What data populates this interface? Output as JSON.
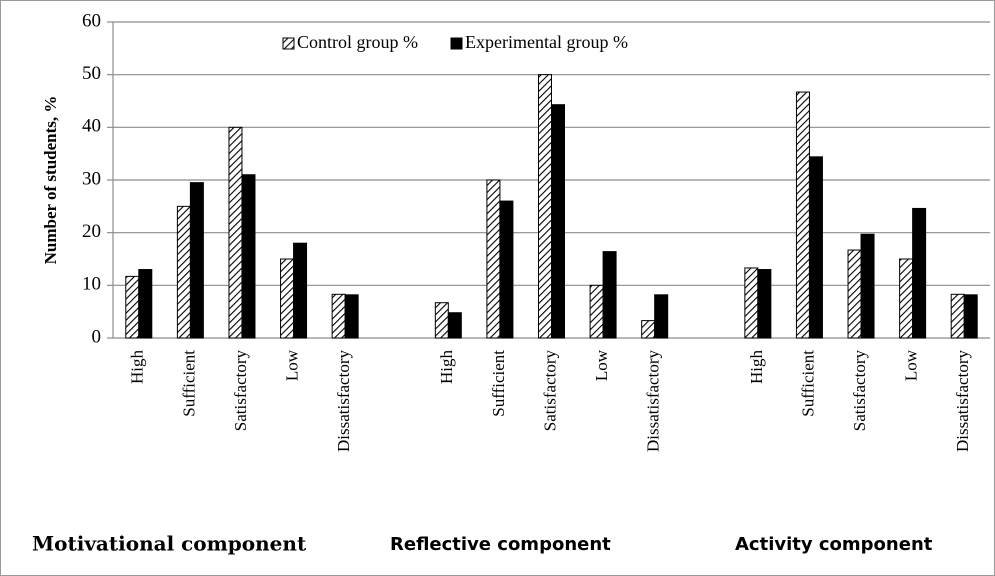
{
  "chart_data": {
    "type": "bar",
    "y_label": "Number of students,  %",
    "categories": [
      "High",
      "Sufficient",
      "Satisfactory",
      "Low",
      "Dissatisfactory",
      null,
      "High",
      "Sufficient",
      "Satisfactory",
      "Low",
      "Dissatisfactory",
      null,
      "High",
      "Sufficient",
      "Satisfactory",
      "Low",
      "Dissatisfactory"
    ],
    "series": [
      {
        "name": "Control group %",
        "color": "#ffffff",
        "hatch": true,
        "values": [
          11.7,
          25,
          40,
          15,
          8.3,
          null,
          6.7,
          30,
          50,
          10,
          3.3,
          null,
          13.3,
          46.7,
          16.7,
          15,
          8.3
        ]
      },
      {
        "name": "Experimental group %",
        "color": "#000000",
        "hatch": false,
        "values": [
          13,
          29.5,
          31,
          18,
          8.2,
          null,
          4.8,
          26,
          44.3,
          16.4,
          8.2,
          null,
          13,
          34.4,
          19.7,
          24.6,
          8.2
        ]
      }
    ],
    "group_labels": [
      "Motivational component",
      "Reflective component",
      "Activity component"
    ],
    "ylim": [
      0,
      60
    ],
    "yticks": [
      0,
      10,
      20,
      30,
      40,
      50,
      60
    ],
    "grid": true,
    "legend": "top"
  }
}
